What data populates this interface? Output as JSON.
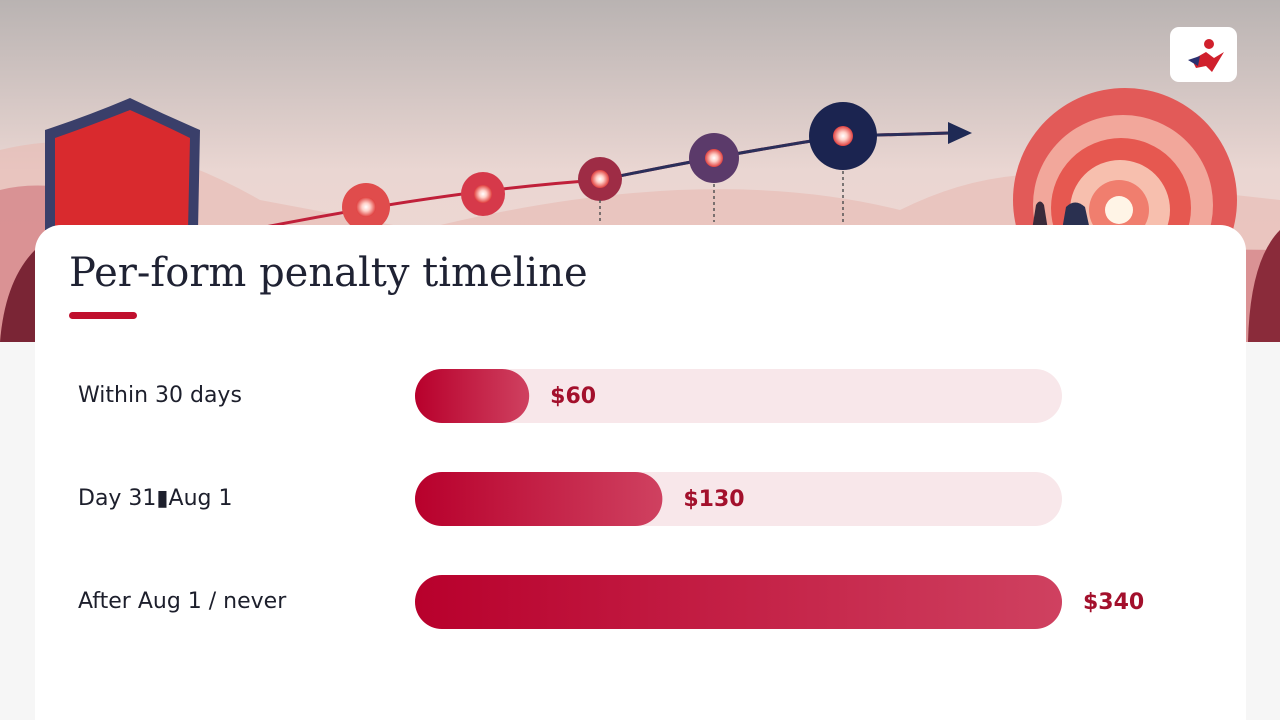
{
  "chart_data": {
    "type": "bar",
    "orientation": "horizontal",
    "title": "Per-form penalty timeline",
    "categories": [
      "Within 30 days",
      "Day 31▮Aug 1",
      "After Aug 1 / never"
    ],
    "values": [
      60,
      130,
      340
    ],
    "value_labels": [
      "$60",
      "$130",
      "$340"
    ],
    "xlim": [
      0,
      340
    ],
    "color": "#b8002c",
    "track_color": "#f8e7ea",
    "label_color": "#a3102c"
  }
}
